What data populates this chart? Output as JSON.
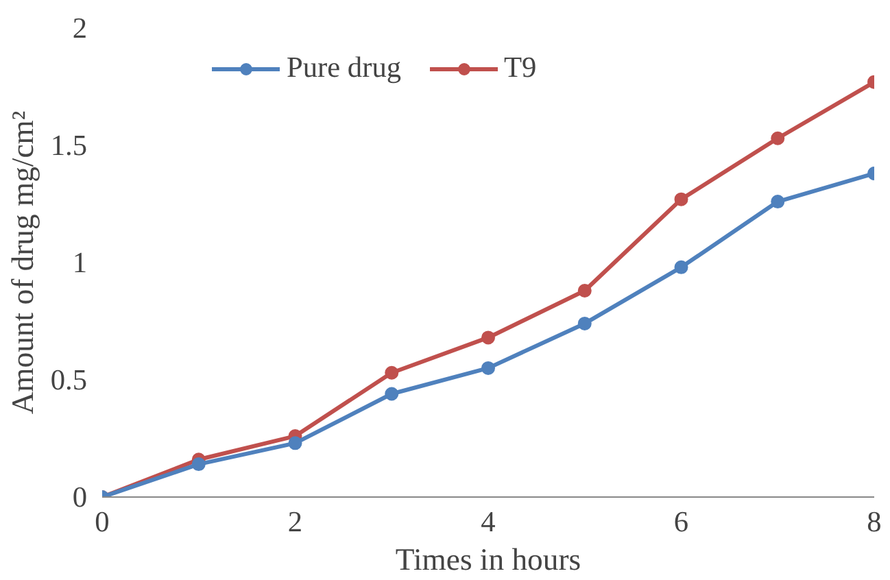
{
  "chart_data": {
    "type": "line",
    "xlabel": "Times in hours",
    "ylabel": "Amount of drug mg/cm²",
    "x": [
      0,
      1,
      2,
      3,
      4,
      5,
      6,
      7,
      8
    ],
    "series": [
      {
        "name": "Pure drug",
        "color": "#4f81bd",
        "values": [
          0,
          0.14,
          0.23,
          0.44,
          0.55,
          0.74,
          0.98,
          1.26,
          1.38
        ]
      },
      {
        "name": "T9",
        "color": "#c0504d",
        "values": [
          0,
          0.16,
          0.26,
          0.53,
          0.68,
          0.88,
          1.27,
          1.53,
          1.77
        ]
      }
    ],
    "xlim": [
      0,
      8
    ],
    "ylim": [
      0,
      2
    ],
    "xticks": [
      0,
      2,
      4,
      6,
      8
    ],
    "yticks": [
      0,
      0.5,
      1,
      1.5,
      2
    ],
    "grid": false,
    "legend": "top",
    "marker": "circle",
    "line_style": "solid"
  }
}
